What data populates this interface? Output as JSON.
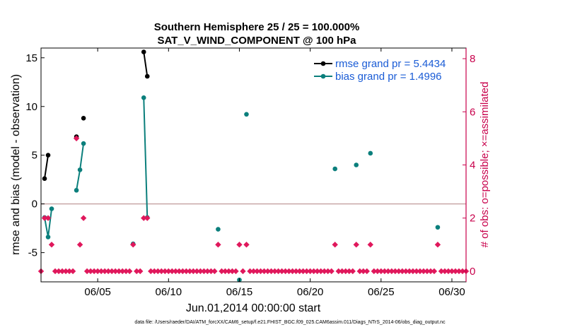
{
  "chart_data": {
    "type": "line",
    "title": "Southern Hemisphere 25 / 25 = 100.000%",
    "subtitle": "SAT_V_WIND_COMPONENT @ 100 hPa",
    "xlabel": "Jun.01,2014 00:00:00 start",
    "ylabel": "rmse and bias (model - observation)",
    "ylabel_right": "# of obs: o=possible; ×=assimilated",
    "xlim": [
      1,
      31
    ],
    "ylim": [
      -8,
      16
    ],
    "ylim_right": [
      -0.4,
      8.4
    ],
    "x_ticks": [
      5,
      10,
      15,
      20,
      25,
      30
    ],
    "x_tick_labels": [
      "06/05",
      "06/10",
      "06/15",
      "06/20",
      "06/25",
      "06/30"
    ],
    "y_ticks": [
      -5,
      0,
      5,
      10,
      15
    ],
    "y_tick_labels": [
      "-5",
      "0",
      "5",
      "10",
      "15"
    ],
    "y_right_ticks": [
      0,
      2,
      4,
      6,
      8
    ],
    "y_right_tick_labels": [
      "0",
      "2",
      "4",
      "6",
      "8"
    ],
    "zero_line": 0,
    "legend_position": "top-right",
    "series": [
      {
        "name": "rmse",
        "legend": "rmse grand pr = 5.4434",
        "color": "#000000",
        "segments": [
          [
            [
              1.25,
              2.6
            ],
            [
              1.5,
              5.0
            ]
          ],
          [
            [
              3.5,
              6.9
            ]
          ],
          [
            [
              4.0,
              8.8
            ]
          ],
          [
            [
              8.25,
              15.6
            ],
            [
              8.5,
              13.1
            ]
          ]
        ]
      },
      {
        "name": "bias",
        "legend": "bias grand pr = 1.4996",
        "color": "#0b7f7c",
        "segments": [
          [
            [
              1.25,
              -1.4
            ],
            [
              1.5,
              -3.4
            ],
            [
              1.75,
              -0.5
            ]
          ],
          [
            [
              3.5,
              1.4
            ],
            [
              3.75,
              3.5
            ],
            [
              4.0,
              6.2
            ]
          ],
          [
            [
              7.5,
              -4.1
            ]
          ],
          [
            [
              8.25,
              10.9
            ],
            [
              8.5,
              -1.4
            ]
          ],
          [
            [
              13.5,
              -2.6
            ]
          ],
          [
            [
              15.0,
              -7.8
            ]
          ],
          [
            [
              15.5,
              9.2
            ]
          ],
          [
            [
              21.75,
              3.6
            ]
          ],
          [
            [
              23.25,
              4.0
            ]
          ],
          [
            [
              24.25,
              5.2
            ]
          ],
          [
            [
              29.0,
              -2.4
            ]
          ]
        ]
      }
    ],
    "obs_color": "#e0185c",
    "obs_possible": [
      [
        1,
        0
      ],
      [
        1.25,
        2
      ],
      [
        1.5,
        2
      ],
      [
        1.75,
        1
      ],
      [
        2,
        0
      ],
      [
        2.25,
        0
      ],
      [
        2.5,
        0
      ],
      [
        2.75,
        0
      ],
      [
        3,
        0
      ],
      [
        3.25,
        0
      ],
      [
        3.5,
        5
      ],
      [
        3.75,
        1
      ],
      [
        4,
        2
      ],
      [
        4.25,
        0
      ],
      [
        4.5,
        0
      ],
      [
        4.75,
        0
      ],
      [
        5,
        0
      ],
      [
        5.25,
        0
      ],
      [
        5.5,
        0
      ],
      [
        5.75,
        0
      ],
      [
        6,
        0
      ],
      [
        6.25,
        0
      ],
      [
        6.5,
        0
      ],
      [
        6.75,
        0
      ],
      [
        7,
        0
      ],
      [
        7.25,
        0
      ],
      [
        7.5,
        1
      ],
      [
        7.75,
        0
      ],
      [
        8,
        0
      ],
      [
        8.25,
        2
      ],
      [
        8.5,
        2
      ],
      [
        8.75,
        0
      ],
      [
        9,
        0
      ],
      [
        9.25,
        0
      ],
      [
        9.5,
        0
      ],
      [
        9.75,
        0
      ],
      [
        10,
        0
      ],
      [
        10.25,
        0
      ],
      [
        10.5,
        0
      ],
      [
        10.75,
        0
      ],
      [
        11,
        0
      ],
      [
        11.25,
        0
      ],
      [
        11.5,
        0
      ],
      [
        11.75,
        0
      ],
      [
        12,
        0
      ],
      [
        12.25,
        0
      ],
      [
        12.5,
        0
      ],
      [
        12.75,
        0
      ],
      [
        13,
        0
      ],
      [
        13.25,
        0
      ],
      [
        13.5,
        1
      ],
      [
        13.75,
        0
      ],
      [
        14,
        0
      ],
      [
        14.25,
        0
      ],
      [
        14.5,
        0
      ],
      [
        14.75,
        0
      ],
      [
        15,
        1
      ],
      [
        15.25,
        0
      ],
      [
        15.5,
        1
      ],
      [
        15.75,
        0
      ],
      [
        16,
        0
      ],
      [
        16.25,
        0
      ],
      [
        16.5,
        0
      ],
      [
        16.75,
        0
      ],
      [
        17,
        0
      ],
      [
        17.25,
        0
      ],
      [
        17.5,
        0
      ],
      [
        17.75,
        0
      ],
      [
        18,
        0
      ],
      [
        18.25,
        0
      ],
      [
        18.5,
        0
      ],
      [
        18.75,
        0
      ],
      [
        19,
        0
      ],
      [
        19.25,
        0
      ],
      [
        19.5,
        0
      ],
      [
        19.75,
        0
      ],
      [
        20,
        0
      ],
      [
        20.25,
        0
      ],
      [
        20.5,
        0
      ],
      [
        20.75,
        0
      ],
      [
        21,
        0
      ],
      [
        21.25,
        0
      ],
      [
        21.5,
        0
      ],
      [
        21.75,
        1
      ],
      [
        22,
        0
      ],
      [
        22.25,
        0
      ],
      [
        22.5,
        0
      ],
      [
        22.75,
        0
      ],
      [
        23,
        0
      ],
      [
        23.25,
        1
      ],
      [
        23.5,
        0
      ],
      [
        23.75,
        0
      ],
      [
        24,
        0
      ],
      [
        24.25,
        1
      ],
      [
        24.5,
        0
      ],
      [
        24.75,
        0
      ],
      [
        25,
        0
      ],
      [
        25.25,
        0
      ],
      [
        25.5,
        0
      ],
      [
        25.75,
        0
      ],
      [
        26,
        0
      ],
      [
        26.25,
        0
      ],
      [
        26.5,
        0
      ],
      [
        26.75,
        0
      ],
      [
        27,
        0
      ],
      [
        27.25,
        0
      ],
      [
        27.5,
        0
      ],
      [
        27.75,
        0
      ],
      [
        28,
        0
      ],
      [
        28.25,
        0
      ],
      [
        28.5,
        0
      ],
      [
        28.75,
        0
      ],
      [
        29,
        1
      ],
      [
        29.25,
        0
      ],
      [
        29.5,
        0
      ],
      [
        29.75,
        0
      ],
      [
        30,
        0
      ],
      [
        30.25,
        0
      ],
      [
        30.5,
        0
      ],
      [
        30.75,
        0
      ],
      [
        31,
        0
      ]
    ],
    "footnote": "data file: /Users/raeder/DAI/ATM_forcXX/CAM6_setup/f.e21.FHIST_BGC.f09_025.CAM6assim.011/Diags_NTrS_2014-06/obs_diag_output.nc"
  }
}
